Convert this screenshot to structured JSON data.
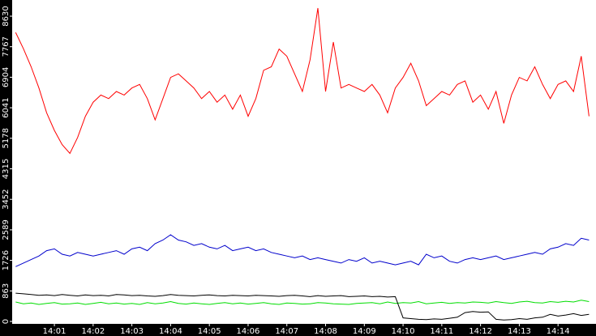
{
  "chart_data": {
    "type": "line",
    "x": [
      0,
      0.2,
      0.4,
      0.6,
      0.8,
      1,
      1.2,
      1.4,
      1.6,
      1.8,
      2,
      2.2,
      2.4,
      2.6,
      2.8,
      3,
      3.2,
      3.4,
      3.6,
      3.8,
      4,
      4.2,
      4.4,
      4.6,
      4.8,
      5,
      5.2,
      5.4,
      5.6,
      5.8,
      6,
      6.2,
      6.4,
      6.6,
      6.8,
      7,
      7.2,
      7.4,
      7.6,
      7.8,
      8,
      8.2,
      8.4,
      8.6,
      8.8,
      9,
      9.2,
      9.4,
      9.6,
      9.8,
      10,
      10.2,
      10.4,
      10.6,
      10.8,
      11,
      11.2,
      11.4,
      11.6,
      11.8,
      12,
      12.2,
      12.4,
      12.6,
      12.8,
      13,
      13.2,
      13.4,
      13.6,
      13.8,
      14,
      14.2,
      14.4,
      14.6,
      14.8
    ],
    "series": [
      {
        "color": "#ff0000",
        "values": [
          8170,
          7710,
          7200,
          6600,
          5900,
          5400,
          5000,
          4750,
          5200,
          5800,
          6200,
          6400,
          6300,
          6500,
          6400,
          6600,
          6700,
          6300,
          5700,
          6300,
          6900,
          7000,
          6800,
          6600,
          6300,
          6500,
          6200,
          6400,
          6000,
          6400,
          5800,
          6300,
          7100,
          7200,
          7700,
          7500,
          7000,
          6500,
          7400,
          8860,
          6500,
          7900,
          6600,
          6700,
          6600,
          6500,
          6700,
          6400,
          5900,
          6600,
          6900,
          7300,
          6800,
          6100,
          6300,
          6500,
          6400,
          6700,
          6800,
          6200,
          6400,
          6000,
          6500,
          5600,
          6400,
          6900,
          6800,
          7200,
          6700,
          6300,
          6700,
          6800,
          6500,
          7500,
          5800
        ]
      },
      {
        "color": "#0000cc",
        "values": [
          1550,
          1650,
          1750,
          1850,
          2000,
          2050,
          1900,
          1850,
          1950,
          1900,
          1850,
          1900,
          1950,
          2000,
          1900,
          2050,
          2100,
          2000,
          2200,
          2300,
          2450,
          2300,
          2250,
          2150,
          2200,
          2100,
          2050,
          2150,
          2000,
          2050,
          2100,
          2000,
          2050,
          1950,
          1900,
          1850,
          1800,
          1850,
          1750,
          1800,
          1750,
          1700,
          1650,
          1750,
          1700,
          1800,
          1650,
          1700,
          1650,
          1600,
          1650,
          1700,
          1600,
          1900,
          1800,
          1850,
          1700,
          1650,
          1750,
          1800,
          1750,
          1800,
          1850,
          1750,
          1800,
          1850,
          1900,
          1950,
          1900,
          2050,
          2100,
          2200,
          2150,
          2350,
          2300
        ]
      },
      {
        "color": "#00dd00",
        "values": [
          550,
          500,
          520,
          480,
          510,
          530,
          490,
          500,
          520,
          480,
          510,
          540,
          500,
          520,
          490,
          510,
          480,
          530,
          500,
          520,
          560,
          510,
          490,
          520,
          500,
          480,
          510,
          530,
          500,
          520,
          490,
          510,
          530,
          500,
          480,
          520,
          510,
          490,
          500,
          530,
          520,
          500,
          490,
          480,
          510,
          520,
          530,
          500,
          550,
          510,
          530,
          520,
          560,
          500,
          520,
          540,
          510,
          530,
          520,
          550,
          540,
          520,
          560,
          530,
          510,
          550,
          570,
          530,
          520,
          560,
          540,
          570,
          550,
          600,
          560
        ]
      },
      {
        "color": "#000000",
        "values": [
          800,
          780,
          760,
          740,
          750,
          730,
          760,
          740,
          720,
          750,
          730,
          740,
          720,
          760,
          750,
          730,
          740,
          720,
          710,
          730,
          760,
          740,
          730,
          720,
          740,
          750,
          730,
          720,
          740,
          730,
          720,
          740,
          730,
          720,
          710,
          730,
          740,
          720,
          700,
          730,
          710,
          720,
          730,
          700,
          710,
          720,
          700,
          710,
          690,
          700,
          100,
          80,
          60,
          50,
          70,
          60,
          90,
          120,
          250,
          280,
          260,
          270,
          60,
          40,
          50,
          80,
          60,
          100,
          120,
          200,
          150,
          180,
          220,
          170,
          200
        ]
      }
    ],
    "xlim": [
      -0.09,
      14.98
    ],
    "xticks": [
      {
        "value": 1,
        "label": "14:01"
      },
      {
        "value": 2,
        "label": "14:02"
      },
      {
        "value": 3,
        "label": "14:03"
      },
      {
        "value": 4,
        "label": "14:04"
      },
      {
        "value": 5,
        "label": "14:05"
      },
      {
        "value": 6,
        "label": "14:06"
      },
      {
        "value": 7,
        "label": "14:07"
      },
      {
        "value": 8,
        "label": "14:08"
      },
      {
        "value": 9,
        "label": "14:09"
      },
      {
        "value": 10,
        "label": "14:10"
      },
      {
        "value": 11,
        "label": "14:11"
      },
      {
        "value": 12,
        "label": "14:12"
      },
      {
        "value": 13,
        "label": "14:13"
      },
      {
        "value": 14,
        "label": "14:14"
      }
    ],
    "ylim": [
      0,
      8630
    ],
    "yticks": [
      0,
      863,
      1726,
      2589,
      3452,
      4315,
      5178,
      6041,
      6904,
      7767,
      8630
    ]
  }
}
